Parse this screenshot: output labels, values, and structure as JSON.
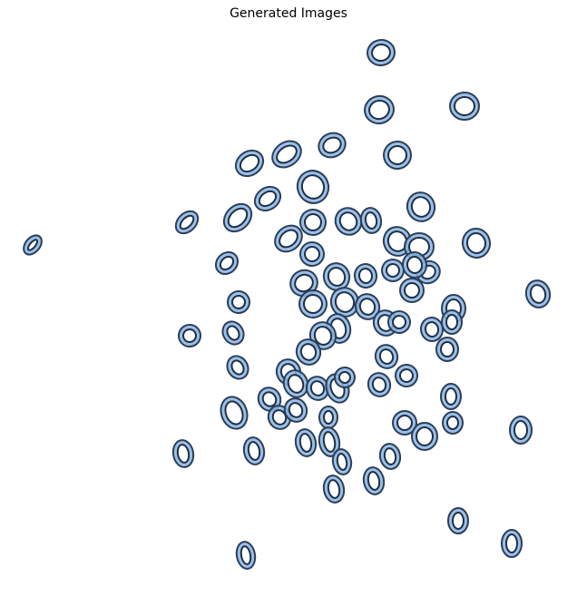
{
  "title": "Generated Images",
  "chart_data": {
    "type": "scatter",
    "title": "Generated Images",
    "axes_visible": false,
    "marker": "zero-digit-thumbnail",
    "colors": {
      "fill": "#8ab6e6",
      "outline": "#2c3e55",
      "hole": "#1f2f44"
    }
  }
}
